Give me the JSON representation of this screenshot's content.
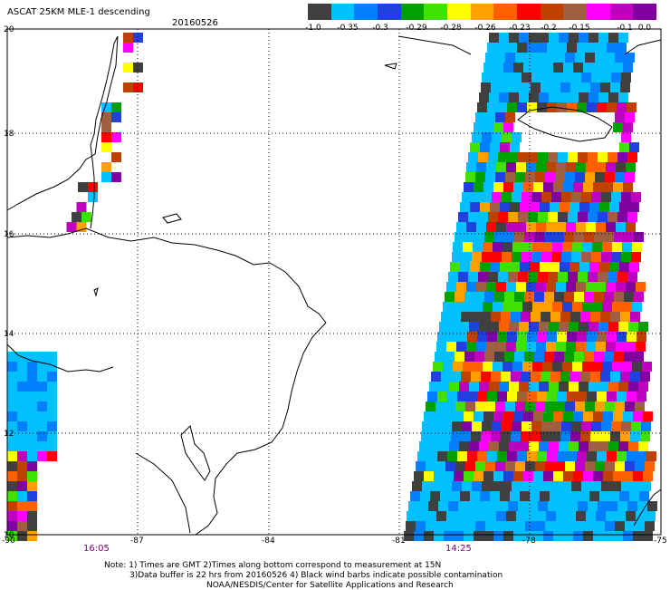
{
  "header": {
    "title": "ASCAT 25KM MLE-1 descending",
    "date": "20160526"
  },
  "colorbar": {
    "colors": [
      "#404040",
      "#00c0ff",
      "#0080ff",
      "#2040e0",
      "#00a000",
      "#40e000",
      "#ffff00",
      "#ffa000",
      "#ff6000",
      "#ff0000",
      "#c04000",
      "#a06040",
      "#ff00ff",
      "#c000c0",
      "#8000a0"
    ],
    "labels": [
      "-1.0",
      "-0.35",
      "-0.3",
      "-0.29",
      "-0.28",
      "-0.26",
      "-0.23",
      "-0.2",
      "-0.15",
      "-0.1",
      "0.0"
    ]
  },
  "axes": {
    "lat_labels": [
      "20",
      "18",
      "16",
      "14",
      "12",
      "10"
    ],
    "lon_labels": [
      "-90",
      "-87",
      "-84",
      "-81",
      "-78",
      "-75"
    ]
  },
  "pass_times": [
    "16:05",
    "14:25"
  ],
  "notes": {
    "line1": "Note: 1) Times are GMT 2)Times along bottom correspond to measurement at 15N",
    "line2": "3)Data buffer is 22 hrs from 20160526 4) Black wind barbs indicate possible contamination",
    "line3": "NOAA/NESDIS/Center for Satellite Applications and Research"
  }
}
